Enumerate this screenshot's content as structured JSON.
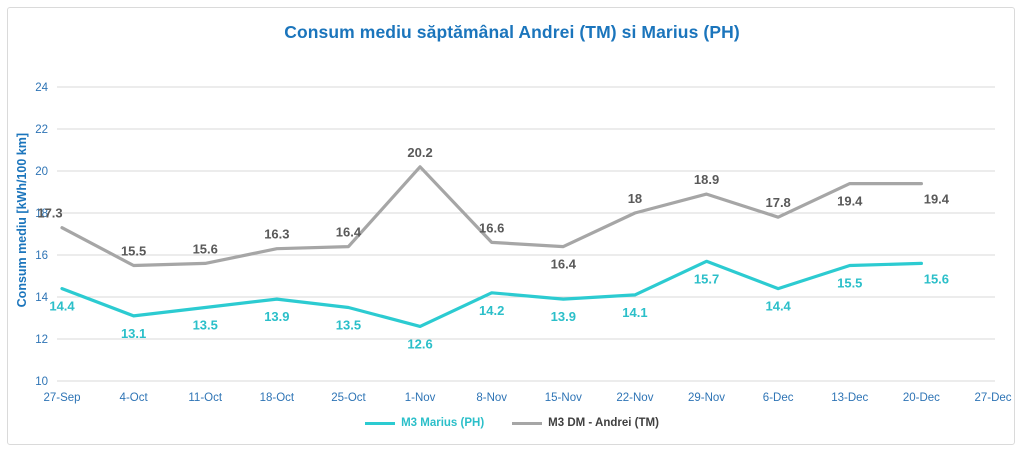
{
  "chart_data": {
    "type": "line",
    "title": "Consum mediu săptămânal Andrei (TM) si Marius (PH)",
    "xlabel": "",
    "ylabel": "Consum mediu [kWh/100 km]",
    "ylim": [
      10,
      24
    ],
    "ytick_step": 2,
    "yticks": [
      10,
      12,
      14,
      16,
      18,
      20,
      22,
      24
    ],
    "grid": true,
    "legend_position": "bottom",
    "categories": [
      "27-Sep",
      "4-Oct",
      "11-Oct",
      "18-Oct",
      "25-Oct",
      "1-Nov",
      "8-Nov",
      "15-Nov",
      "22-Nov",
      "29-Nov",
      "6-Dec",
      "13-Dec",
      "20-Dec",
      "27-Dec"
    ],
    "series": [
      {
        "id": "marius",
        "name": "M3 Marius (PH)",
        "color": "#2CCBD1",
        "label_color": "#2BBFC9",
        "legend_text_color": "#2BBFC9",
        "values": [
          14.4,
          13.1,
          13.5,
          13.9,
          13.5,
          12.6,
          14.2,
          13.9,
          14.1,
          15.7,
          14.4,
          15.5,
          15.6
        ],
        "label_positions": [
          "below",
          "below",
          "below",
          "below",
          "below",
          "below",
          "below",
          "below",
          "below",
          "below",
          "below",
          "below",
          "right-below"
        ]
      },
      {
        "id": "andrei",
        "name": "M3 DM - Andrei (TM)",
        "color": "#A6A6A6",
        "label_color": "#595959",
        "legend_text_color": "#404040",
        "values": [
          17.3,
          15.5,
          15.6,
          16.3,
          16.4,
          20.2,
          16.6,
          16.4,
          18,
          18.9,
          17.8,
          19.4,
          19.4
        ],
        "label_positions": [
          "above-left",
          "above",
          "above",
          "above",
          "above",
          "above",
          "above",
          "below",
          "above",
          "above",
          "above",
          "below",
          "right-below"
        ]
      }
    ],
    "colors": {
      "title": "#1B75BC",
      "axis_label": "#1B75BC",
      "tick_label": "#2E74B5",
      "gridline": "#D9D9D9",
      "border": "#DADADA",
      "background": "#FFFFFF"
    }
  }
}
